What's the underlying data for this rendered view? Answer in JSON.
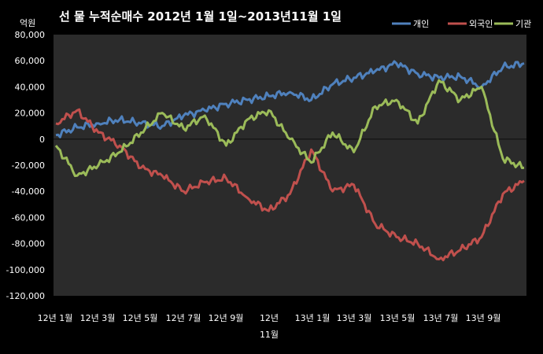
{
  "chart_data": {
    "type": "line",
    "title": "선 물 누적순매수 2012년 1월 1일~2013년11월 1일",
    "unit_label": "억원",
    "ylim": [
      -120000,
      80000
    ],
    "y_ticks": [
      80000,
      60000,
      40000,
      20000,
      0,
      -20000,
      -40000,
      -60000,
      -80000,
      -100000,
      -120000
    ],
    "y_tick_labels": [
      "80,000",
      "60,000",
      "40,000",
      "20,000",
      "0",
      "-20,000",
      "-40,000",
      "-60,000",
      "-80,000",
      "-100,000",
      "-120,000"
    ],
    "x_tick_labels": [
      "12년 1월",
      "12년 3월",
      "12년 5월",
      "12년 7월",
      "12년 9월",
      "12년 11월",
      "13년 1월",
      "13년 3월",
      "13년 5월",
      "13년 7월",
      "13년 9월"
    ],
    "x": [
      "2012-01",
      "2012-02",
      "2012-03",
      "2012-04",
      "2012-05",
      "2012-06",
      "2012-07",
      "2012-08",
      "2012-09",
      "2012-10",
      "2012-11",
      "2012-12",
      "2013-01",
      "2013-02",
      "2013-03",
      "2013-04",
      "2013-05",
      "2013-06",
      "2013-07",
      "2013-08",
      "2013-09",
      "2013-10",
      "2013-11"
    ],
    "grid": true,
    "legend_position": "top-right",
    "series": [
      {
        "name": "개인",
        "color": "#4f81bd",
        "values": [
          3000,
          9000,
          12000,
          15000,
          12000,
          10000,
          18000,
          22000,
          27000,
          30000,
          33000,
          36000,
          30000,
          42000,
          47000,
          52000,
          58000,
          50000,
          47000,
          48000,
          40000,
          55000,
          58000
        ]
      },
      {
        "name": "외국인",
        "color": "#c0504d",
        "values": [
          12000,
          22000,
          5000,
          -5000,
          -22000,
          -28000,
          -40000,
          -33000,
          -30000,
          -45000,
          -55000,
          -42000,
          -8000,
          -40000,
          -35000,
          -65000,
          -75000,
          -80000,
          -92000,
          -85000,
          -75000,
          -42000,
          -32000
        ]
      },
      {
        "name": "기관",
        "color": "#9bbb59",
        "values": [
          -5000,
          -28000,
          -20000,
          -10000,
          5000,
          20000,
          8000,
          18000,
          -5000,
          15000,
          22000,
          0,
          -18000,
          5000,
          -10000,
          25000,
          30000,
          12000,
          45000,
          30000,
          40000,
          -15000,
          -22000
        ]
      }
    ]
  }
}
